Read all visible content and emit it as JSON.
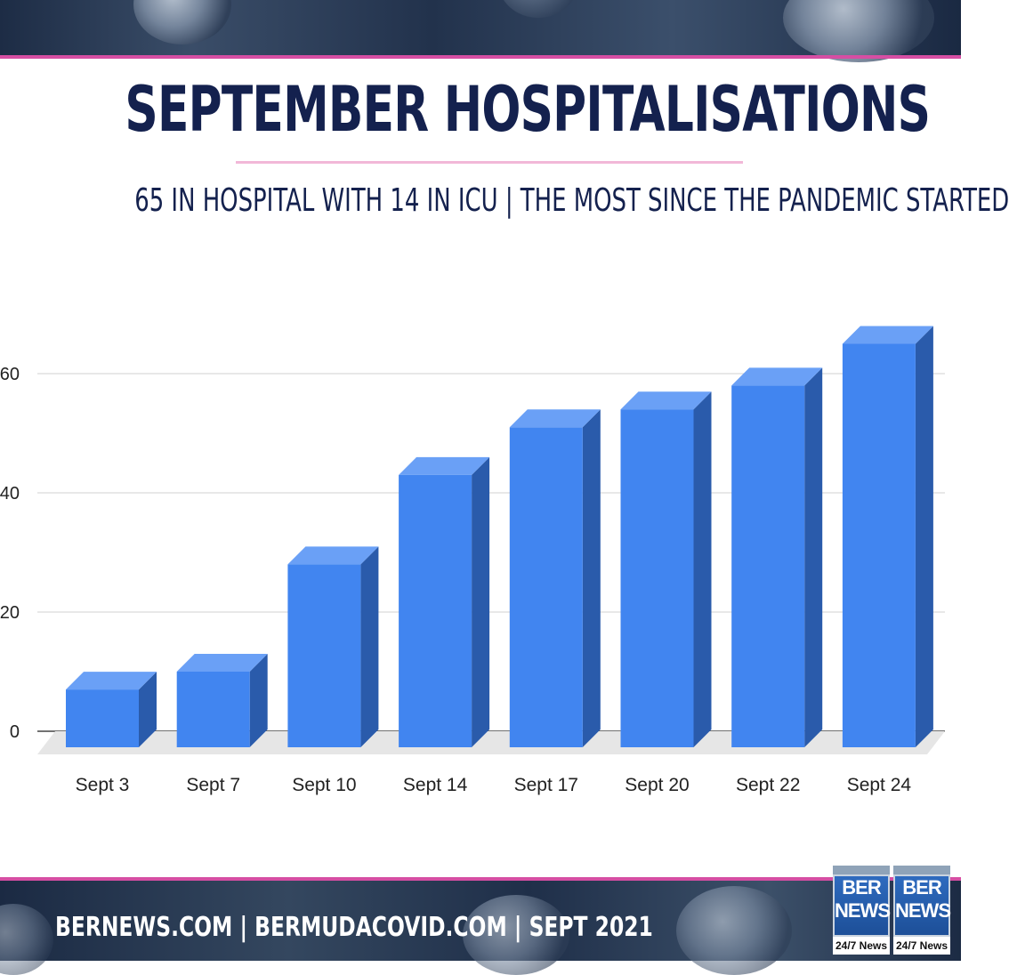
{
  "header": {
    "title": "SEPTEMBER HOSPITALISATIONS",
    "subtitle": "65 IN HOSPITAL WITH 14 IN ICU | THE MOST SINCE THE PANDEMIC STARTED"
  },
  "footer": {
    "text": "BERNEWS.COM | BERMUDACOVID.COM | SEPT 2021"
  },
  "logo": {
    "line1": "BER",
    "line2": "NEWS",
    "tagline": "24/7 News"
  },
  "colors": {
    "title": "#14214e",
    "accent": "#d64ea3",
    "bar_front": "#4185f0",
    "bar_top": "#6aa0f6",
    "bar_side": "#2a5bab"
  },
  "chart_data": {
    "type": "bar",
    "categories": [
      "Sept 3",
      "Sept 7",
      "Sept 10",
      "Sept 14",
      "Sept 17",
      "Sept 20",
      "Sept 22",
      "Sept 24"
    ],
    "values": [
      7,
      10,
      28,
      43,
      51,
      54,
      58,
      65
    ],
    "ylim": [
      0,
      70
    ],
    "yticks": [
      "0",
      "20",
      "40",
      "60"
    ],
    "ytick_values": [
      0,
      20,
      40,
      60
    ],
    "grid": true,
    "style": "3d"
  }
}
